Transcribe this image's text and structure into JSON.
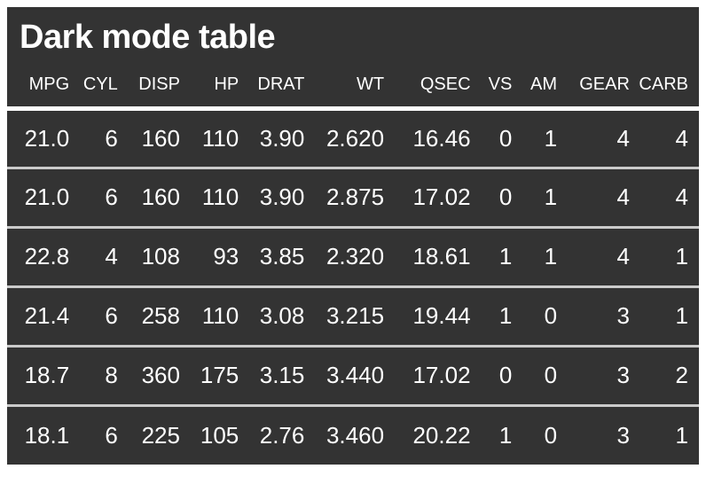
{
  "title": "Dark mode table",
  "colors": {
    "page_background": "#ffffff",
    "table_surface": "#333333",
    "text": "#ffffff",
    "header_divider": "#ffffff",
    "row_divider": "#cbcbcb"
  },
  "chart_data": {
    "type": "table",
    "title": "Dark mode table",
    "columns": [
      "MPG",
      "CYL",
      "DISP",
      "HP",
      "DRAT",
      "WT",
      "QSEC",
      "VS",
      "AM",
      "GEAR",
      "CARB"
    ],
    "rows": [
      [
        "21.0",
        "6",
        "160",
        "110",
        "3.90",
        "2.620",
        "16.46",
        "0",
        "1",
        "4",
        "4"
      ],
      [
        "21.0",
        "6",
        "160",
        "110",
        "3.90",
        "2.875",
        "17.02",
        "0",
        "1",
        "4",
        "4"
      ],
      [
        "22.8",
        "4",
        "108",
        "93",
        "3.85",
        "2.320",
        "18.61",
        "1",
        "1",
        "4",
        "1"
      ],
      [
        "21.4",
        "6",
        "258",
        "110",
        "3.08",
        "3.215",
        "19.44",
        "1",
        "0",
        "3",
        "1"
      ],
      [
        "18.7",
        "8",
        "360",
        "175",
        "3.15",
        "3.440",
        "17.02",
        "0",
        "0",
        "3",
        "2"
      ],
      [
        "18.1",
        "6",
        "225",
        "105",
        "2.76",
        "3.460",
        "20.22",
        "1",
        "0",
        "3",
        "1"
      ]
    ]
  }
}
